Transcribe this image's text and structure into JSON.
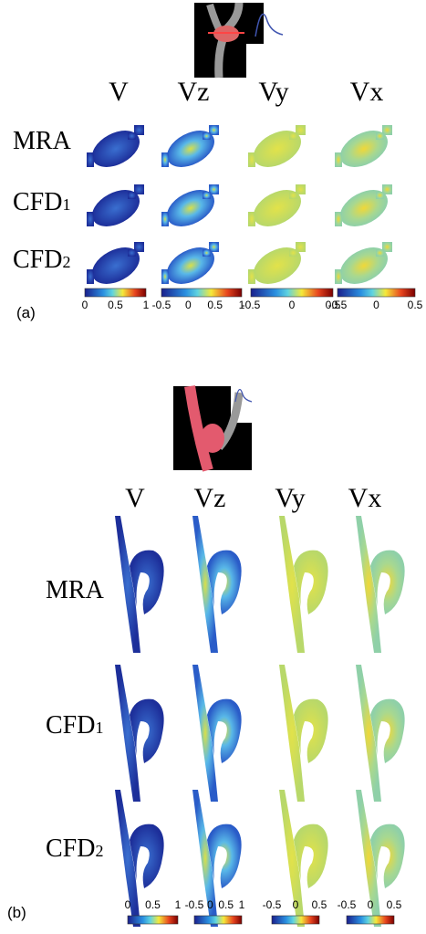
{
  "panels": [
    {
      "label": "(a)",
      "columns": [
        "V",
        "Vz",
        "Vy",
        "Vx"
      ],
      "rows": [
        {
          "name": "MRA"
        },
        {
          "name": "CFD",
          "subscript": "1"
        },
        {
          "name": "CFD",
          "subscript": "2"
        }
      ],
      "colorbars": [
        {
          "ticks": [
            0,
            0.5,
            1
          ]
        },
        {
          "ticks": [
            -0.5,
            0,
            0.5,
            1
          ]
        },
        {
          "ticks": [
            -0.5,
            0,
            0.5
          ]
        },
        {
          "ticks": [
            -0.5,
            0,
            0.5
          ]
        }
      ]
    },
    {
      "label": "(b)",
      "columns": [
        "V",
        "Vz",
        "Vy",
        "Vx"
      ],
      "rows": [
        {
          "name": "MRA"
        },
        {
          "name": "CFD",
          "subscript": "1"
        },
        {
          "name": "CFD",
          "subscript": "2"
        }
      ],
      "colorbars": [
        {
          "ticks": [
            0,
            0.5,
            1
          ]
        },
        {
          "ticks": [
            -0.5,
            0,
            0.5,
            1
          ]
        },
        {
          "ticks": [
            -0.5,
            0,
            0.5
          ]
        },
        {
          "ticks": [
            -0.5,
            0,
            0.5
          ]
        }
      ]
    }
  ]
}
